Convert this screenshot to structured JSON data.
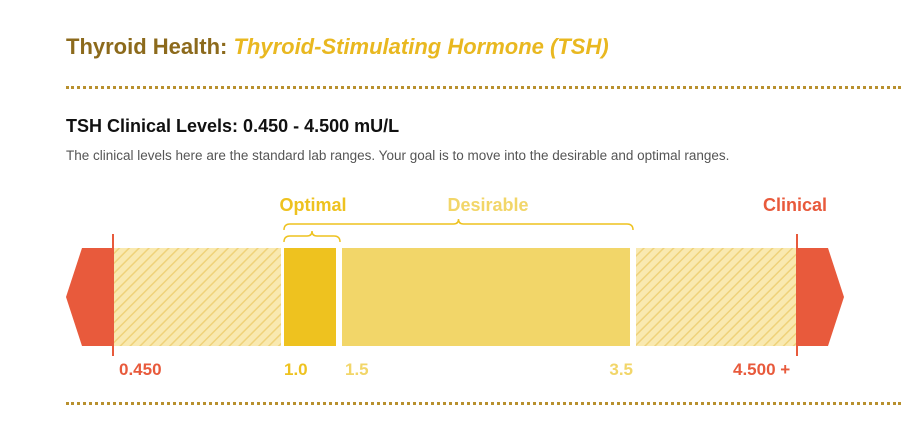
{
  "header": {
    "title_main": "Thyroid Health: ",
    "title_sub": "Thyroid-Stimulating Hormone (TSH)"
  },
  "section": {
    "heading": "TSH Clinical Levels:  0.450 - 4.500 mU/L",
    "description": "The clinical levels here are the standard lab ranges. Your goal is to move into the desirable and optimal ranges."
  },
  "colors": {
    "clinical": "#e85a3c",
    "optimal": "#eec21f",
    "desirable": "#f2d669",
    "hatch_bg": "#f9e9b0",
    "hatch_line": "#efd27a",
    "title_brown": "#8c6a1c"
  },
  "chart_data": {
    "type": "range-bar",
    "ranges": [
      {
        "name": "Optimal",
        "from": 1.0,
        "to": 1.5
      },
      {
        "name": "Desirable",
        "from": 1.5,
        "to": 3.5
      }
    ],
    "clinical": {
      "label": "Clinical",
      "low": 0.45,
      "high": 4.5
    },
    "tick_labels": [
      "0.450",
      "1.0",
      "1.5",
      "3.5",
      "4.500 +"
    ]
  }
}
